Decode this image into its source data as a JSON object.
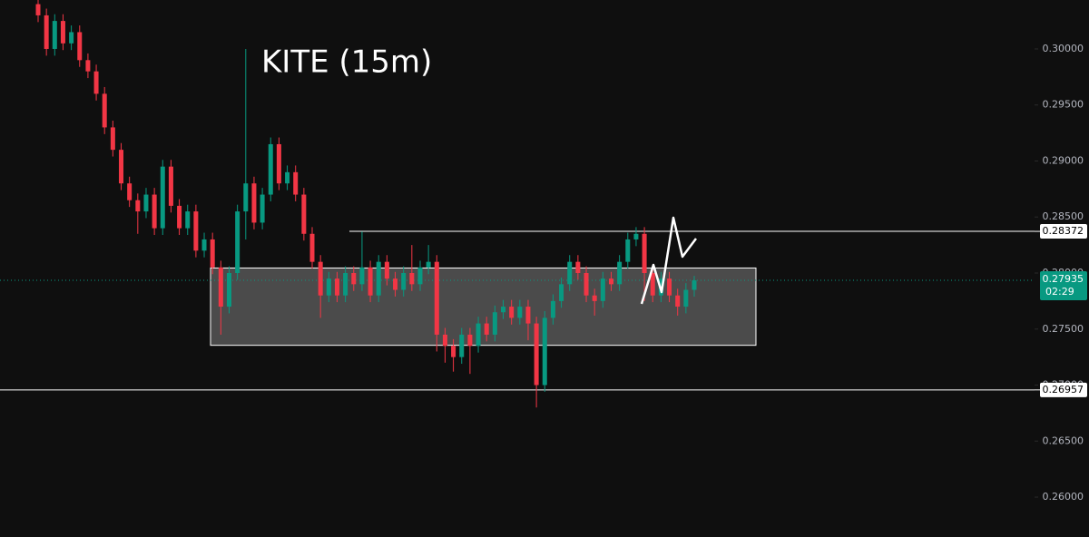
{
  "chart_data": {
    "type": "candlestick",
    "title": "KITE (15m)",
    "open": [
      0.304,
      0.303,
      0.3,
      0.3025,
      0.3005,
      0.3015,
      0.299,
      0.298,
      0.296,
      0.293,
      0.291,
      0.288,
      0.2865,
      0.2855,
      0.287,
      0.284,
      0.2895,
      0.286,
      0.284,
      0.2855,
      0.282,
      0.283,
      0.2805,
      0.277,
      0.28,
      0.2855,
      0.288,
      0.2845,
      0.287,
      0.2915,
      0.288,
      0.289,
      0.287,
      0.2835,
      0.281,
      0.278,
      0.2795,
      0.278,
      0.28,
      0.279,
      0.2805,
      0.278,
      0.281,
      0.2795,
      0.2785,
      0.28,
      0.279,
      0.2805,
      0.281,
      0.2745,
      0.2735,
      0.2725,
      0.2745,
      0.2735,
      0.2755,
      0.2745,
      0.2765,
      0.277,
      0.276,
      0.277,
      0.2755,
      0.27,
      0.276,
      0.2775,
      0.279,
      0.281,
      0.28,
      0.278,
      0.2775,
      0.2795,
      0.279,
      0.281,
      0.283,
      0.2835,
      0.28,
      0.278,
      0.2795,
      0.278,
      0.277,
      0.2785
    ],
    "high": [
      0.3046,
      0.3036,
      0.3031,
      0.3031,
      0.3021,
      0.3021,
      0.2996,
      0.2986,
      0.2966,
      0.2936,
      0.2916,
      0.2886,
      0.2871,
      0.2876,
      0.2876,
      0.2901,
      0.2901,
      0.2866,
      0.2861,
      0.2861,
      0.2836,
      0.2836,
      0.2811,
      0.2806,
      0.2861,
      0.3,
      0.2886,
      0.2876,
      0.2921,
      0.2921,
      0.2896,
      0.2896,
      0.2876,
      0.2841,
      0.2816,
      0.2801,
      0.2801,
      0.2806,
      0.2806,
      0.2837,
      0.2811,
      0.2816,
      0.2816,
      0.2801,
      0.2806,
      0.2825,
      0.2811,
      0.2825,
      0.2816,
      0.2751,
      0.2741,
      0.2751,
      0.2751,
      0.2761,
      0.2761,
      0.2771,
      0.2776,
      0.2776,
      0.2776,
      0.2776,
      0.2761,
      0.2766,
      0.2781,
      0.2796,
      0.2816,
      0.2816,
      0.2806,
      0.2786,
      0.2801,
      0.2801,
      0.2816,
      0.2836,
      0.2841,
      0.2841,
      0.2806,
      0.2801,
      0.2801,
      0.2786,
      0.2791,
      0.27975
    ],
    "low": [
      0.3024,
      0.2994,
      0.2994,
      0.2999,
      0.2999,
      0.2984,
      0.2974,
      0.2954,
      0.2924,
      0.2904,
      0.2874,
      0.2859,
      0.2835,
      0.2849,
      0.2834,
      0.2834,
      0.2854,
      0.2834,
      0.2834,
      0.2814,
      0.2814,
      0.2799,
      0.2745,
      0.2764,
      0.2794,
      0.283,
      0.2839,
      0.2839,
      0.2864,
      0.2874,
      0.2874,
      0.2864,
      0.2829,
      0.2804,
      0.276,
      0.2774,
      0.2774,
      0.2774,
      0.2784,
      0.2784,
      0.2774,
      0.2774,
      0.2789,
      0.2779,
      0.2779,
      0.2784,
      0.2784,
      0.2799,
      0.273,
      0.272,
      0.2712,
      0.2719,
      0.271,
      0.2729,
      0.2739,
      0.2739,
      0.2759,
      0.2754,
      0.2754,
      0.274,
      0.268,
      0.2694,
      0.2754,
      0.2769,
      0.2784,
      0.2794,
      0.2774,
      0.2762,
      0.2769,
      0.2784,
      0.2784,
      0.2804,
      0.2824,
      0.2775,
      0.2774,
      0.2774,
      0.2774,
      0.2762,
      0.2764,
      0.2779
    ],
    "close": [
      0.303,
      0.3,
      0.3025,
      0.3005,
      0.3015,
      0.299,
      0.298,
      0.296,
      0.293,
      0.291,
      0.288,
      0.2865,
      0.2855,
      0.287,
      0.284,
      0.2895,
      0.286,
      0.284,
      0.2855,
      0.282,
      0.283,
      0.2805,
      0.277,
      0.28,
      0.2855,
      0.288,
      0.2845,
      0.287,
      0.2915,
      0.288,
      0.289,
      0.287,
      0.2835,
      0.281,
      0.278,
      0.2795,
      0.278,
      0.28,
      0.279,
      0.2805,
      0.278,
      0.281,
      0.2795,
      0.2785,
      0.28,
      0.279,
      0.2805,
      0.281,
      0.2745,
      0.2735,
      0.2725,
      0.2745,
      0.2735,
      0.2755,
      0.2745,
      0.2765,
      0.277,
      0.276,
      0.277,
      0.2755,
      0.27,
      0.276,
      0.2775,
      0.279,
      0.281,
      0.28,
      0.278,
      0.2775,
      0.2795,
      0.279,
      0.281,
      0.283,
      0.2835,
      0.28,
      0.278,
      0.2795,
      0.278,
      0.277,
      0.2785,
      0.27935
    ],
    "up_color": "#089981",
    "down_color": "#f23645",
    "ylim": [
      0.25644,
      0.30437
    ],
    "yticks": [
      {
        "value": 0.26,
        "label": "0.26000"
      },
      {
        "value": 0.265,
        "label": "0.26500"
      },
      {
        "value": 0.27,
        "label": "0.27000"
      },
      {
        "value": 0.275,
        "label": "0.27500"
      },
      {
        "value": 0.28,
        "label": "0.28000"
      },
      {
        "value": 0.285,
        "label": "0.28500"
      },
      {
        "value": 0.29,
        "label": "0.29000"
      },
      {
        "value": 0.295,
        "label": "0.29500"
      },
      {
        "value": 0.3,
        "label": "0.30000"
      }
    ],
    "grid": false,
    "levels": [
      0.28372,
      0.26957
    ],
    "range_box": [
      0.27355,
      0.28045
    ],
    "last_price": 0.27935,
    "countdown": "02:29"
  }
}
